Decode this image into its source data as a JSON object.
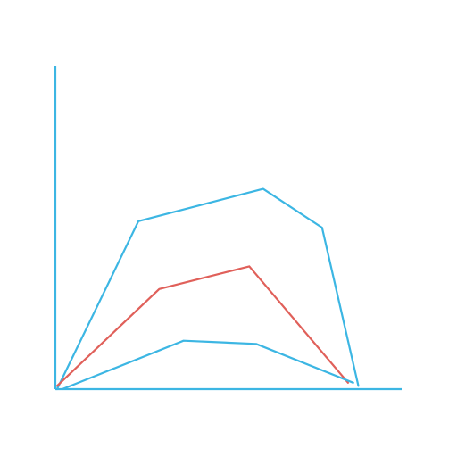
{
  "chart_data": {
    "type": "line",
    "title": "",
    "xlabel": "",
    "ylabel": "",
    "grid": false,
    "legend": "none",
    "axes_color": "#3cb6e3",
    "series": [
      {
        "color": "#3cb6e3",
        "points": [
          [
            0.5,
            0
          ],
          [
            24,
            52
          ],
          [
            60,
            62
          ],
          [
            77,
            50
          ],
          [
            87.5,
            1
          ]
        ]
      },
      {
        "color": "#e0605a",
        "points": [
          [
            0.5,
            1
          ],
          [
            30,
            31
          ],
          [
            56,
            38
          ],
          [
            84.5,
            2
          ]
        ]
      },
      {
        "color": "#3cb6e3",
        "points": [
          [
            2,
            0
          ],
          [
            37,
            15
          ],
          [
            58,
            14
          ],
          [
            86,
            2
          ]
        ]
      }
    ],
    "xlim": [
      0,
      100
    ],
    "ylim": [
      0,
      100
    ]
  }
}
